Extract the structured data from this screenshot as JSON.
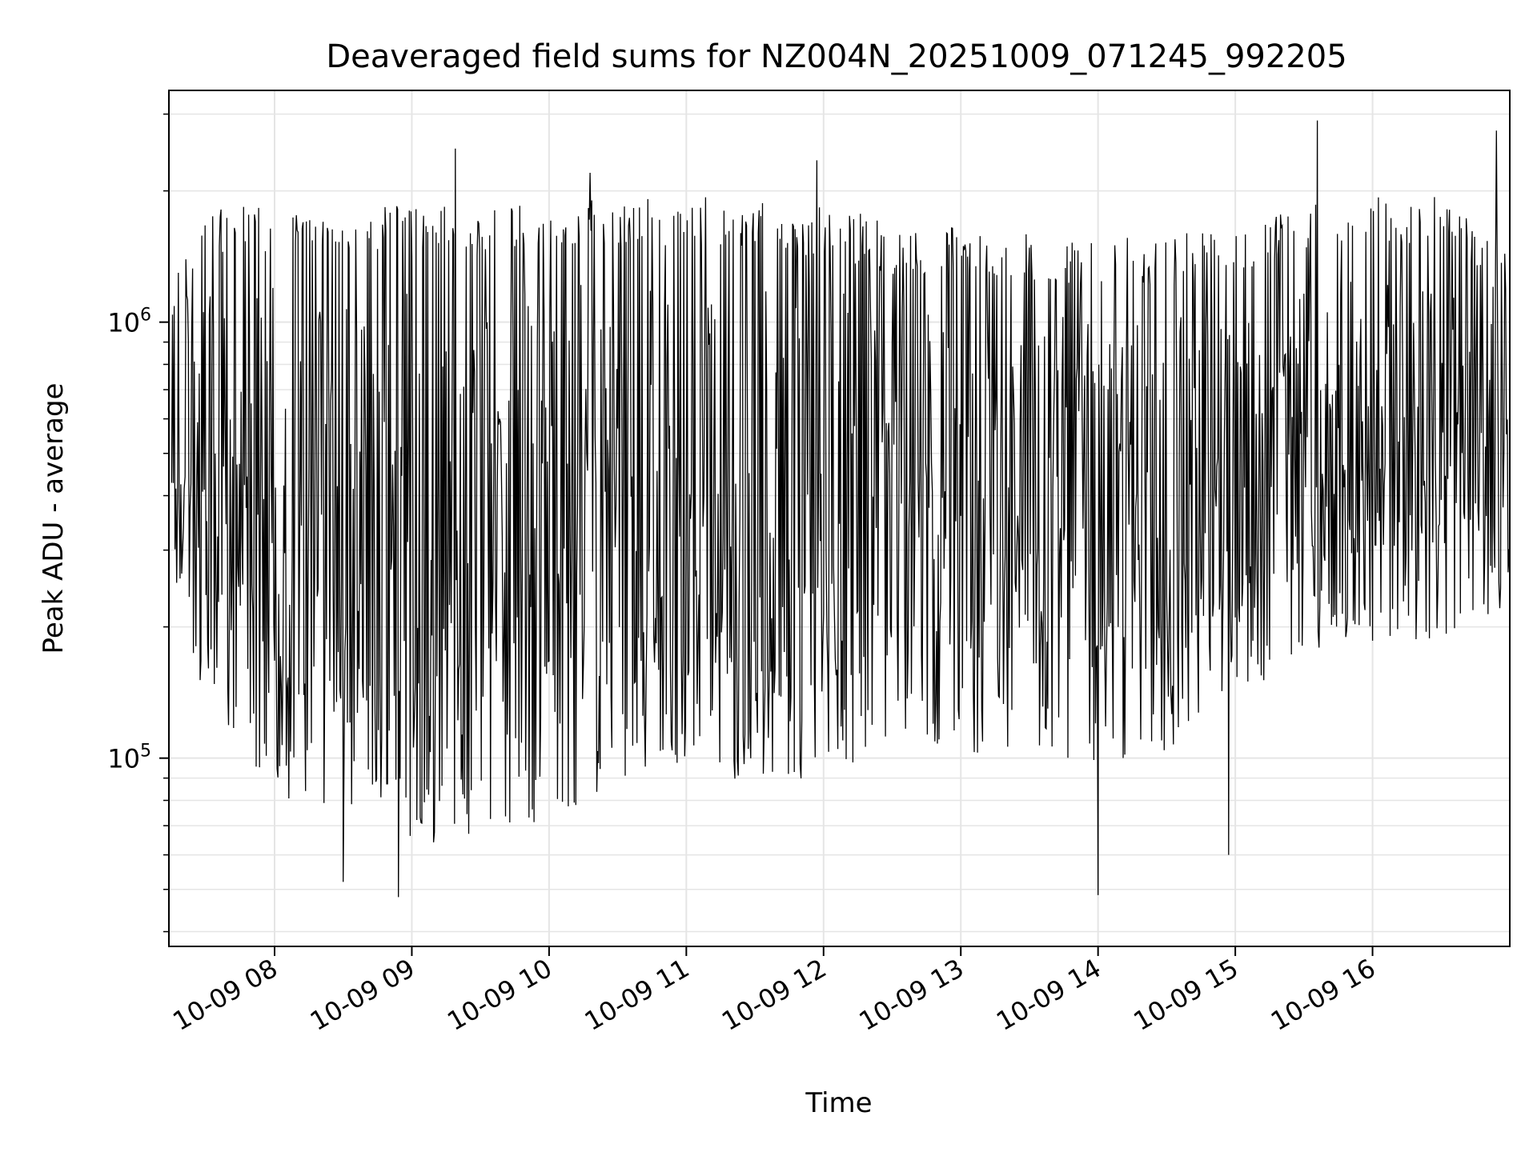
{
  "chart_data": {
    "type": "line",
    "title": "Deaveraged field sums for NZ004N_20251009_071245_992205",
    "xlabel": "Time",
    "ylabel": "Peak ADU - average",
    "yscale": "log",
    "ylim": [
      37000,
      3400000
    ],
    "xlim_hours": [
      7.23,
      17.0
    ],
    "x_ticks": [
      {
        "hour": 8,
        "label": "10-09 08"
      },
      {
        "hour": 9,
        "label": "10-09 09"
      },
      {
        "hour": 10,
        "label": "10-09 10"
      },
      {
        "hour": 11,
        "label": "10-09 11"
      },
      {
        "hour": 12,
        "label": "10-09 12"
      },
      {
        "hour": 13,
        "label": "10-09 13"
      },
      {
        "hour": 14,
        "label": "10-09 14"
      },
      {
        "hour": 15,
        "label": "10-09 15"
      },
      {
        "hour": 16,
        "label": "10-09 16"
      }
    ],
    "y_ticks": [
      {
        "value": 100000,
        "base": "10",
        "exp": "5"
      },
      {
        "value": 1000000,
        "base": "10",
        "exp": "6"
      }
    ],
    "grid": true,
    "line_color": "#000000",
    "grid_color": "#e5e5e5",
    "envelope": [
      {
        "hour": 7.25,
        "low": 300000,
        "high": 1100000
      },
      {
        "hour": 7.5,
        "low": 150000,
        "high": 1700000
      },
      {
        "hour": 8.0,
        "low": 90000,
        "high": 1700000
      },
      {
        "hour": 8.5,
        "low": 85000,
        "high": 1700000
      },
      {
        "hour": 9.0,
        "low": 70000,
        "high": 1700000
      },
      {
        "hour": 9.5,
        "low": 72000,
        "high": 1700000
      },
      {
        "hour": 10.0,
        "low": 80000,
        "high": 1750000
      },
      {
        "hour": 10.5,
        "low": 100000,
        "high": 1750000
      },
      {
        "hour": 11.0,
        "low": 110000,
        "high": 1800000
      },
      {
        "hour": 11.5,
        "low": 95000,
        "high": 1750000
      },
      {
        "hour": 12.0,
        "low": 100000,
        "high": 1700000
      },
      {
        "hour": 12.5,
        "low": 120000,
        "high": 1550000
      },
      {
        "hour": 13.0,
        "low": 115000,
        "high": 1500000
      },
      {
        "hour": 13.5,
        "low": 115000,
        "high": 1500000
      },
      {
        "hour": 14.0,
        "low": 110000,
        "high": 1450000
      },
      {
        "hour": 14.5,
        "low": 115000,
        "high": 1450000
      },
      {
        "hour": 15.0,
        "low": 140000,
        "high": 1500000
      },
      {
        "hour": 15.5,
        "low": 190000,
        "high": 1700000
      },
      {
        "hour": 16.0,
        "low": 200000,
        "high": 1800000
      },
      {
        "hour": 16.5,
        "low": 210000,
        "high": 1800000
      },
      {
        "hour": 17.0,
        "low": 250000,
        "high": 1300000
      }
    ],
    "notable_spikes": [
      {
        "hour": 9.32,
        "value": 2500000
      },
      {
        "hour": 10.3,
        "value": 2200000
      },
      {
        "hour": 11.95,
        "value": 2350000
      },
      {
        "hour": 15.6,
        "value": 2900000
      },
      {
        "hour": 16.9,
        "value": 2750000
      },
      {
        "hour": 8.5,
        "value": 52000
      },
      {
        "hour": 8.9,
        "value": 48000
      },
      {
        "hour": 14.0,
        "value": 48500
      },
      {
        "hour": 14.95,
        "value": 60000
      }
    ]
  }
}
